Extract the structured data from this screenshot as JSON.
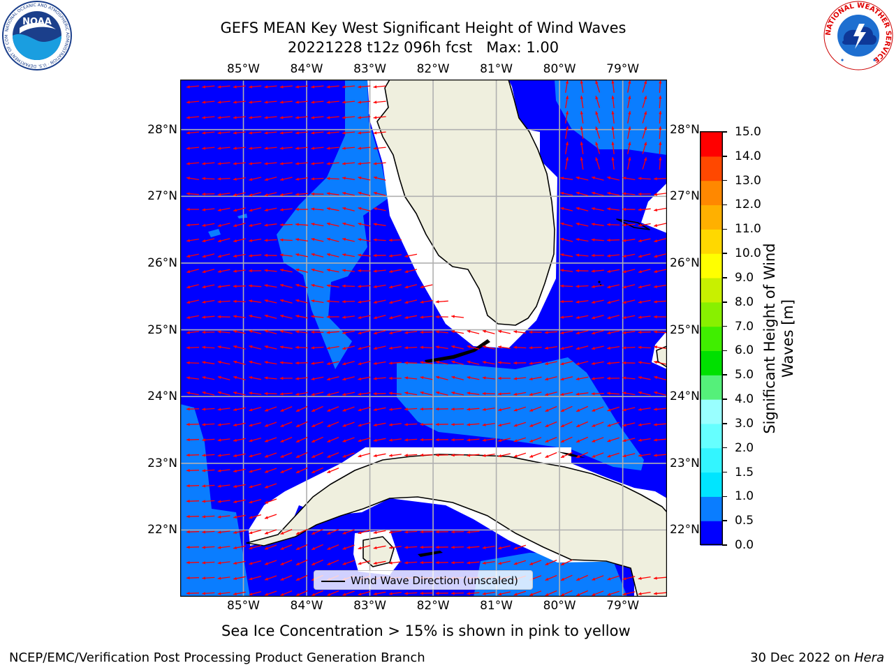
{
  "title_line1": "GEFS MEAN Key West Significant Height of Wind Waves",
  "title_line2": "20221228 t12z 096h fcst   Max: 1.00",
  "map": {
    "lon_range": [
      -86,
      -78.3
    ],
    "lat_range": [
      21.0,
      28.75
    ],
    "lon_ticks": [
      "85°W",
      "84°W",
      "83°W",
      "82°W",
      "81°W",
      "80°W",
      "79°W"
    ],
    "lat_ticks": [
      "22°N",
      "23°N",
      "24°N",
      "25°N",
      "26°N",
      "27°N",
      "28°N"
    ],
    "gridlines": true,
    "colors": {
      "ocean_low": "#0000ff",
      "ocean_mid": "#0a7dff",
      "land": "#efefde",
      "coast": "#000000",
      "arrow": "#ff0000",
      "grid": "#b0b0b0"
    }
  },
  "legend": {
    "label": "Wind Wave Direction (unscaled)",
    "placement": "bottom-center"
  },
  "colorbar": {
    "title": "Significant Height of Wind Waves [m]",
    "title_line1": "Significant Height of Wind",
    "title_line2": "Waves [m]",
    "levels": [
      "0.0",
      "0.5",
      "1.0",
      "1.5",
      "2.0",
      "3.0",
      "4.0",
      "5.0",
      "6.0",
      "7.0",
      "8.0",
      "9.0",
      "10.0",
      "11.0",
      "12.0",
      "13.0",
      "14.0",
      "15.0"
    ],
    "colors": [
      "#0000ff",
      "#0a7dff",
      "#00e5ff",
      "#33f5ff",
      "#66ffff",
      "#99ffff",
      "#55f07a",
      "#00e000",
      "#40ee00",
      "#88f000",
      "#c8f000",
      "#ffff00",
      "#ffd800",
      "#ffb000",
      "#ff8800",
      "#ff4800",
      "#ff0000"
    ]
  },
  "caption": "Sea Ice Concentration > 15% is shown in pink to yellow",
  "footer": {
    "left": "NCEP/EMC/Verification Post Processing Product Generation Branch",
    "date": "30 Dec 2022 on ",
    "machine": "Hera"
  },
  "logos": {
    "noaa_icon": "noaa-logo-icon",
    "noaa_text": "NOAA",
    "noaa_ring": "NATIONAL OCEANIC AND ATMOSPHERIC ADMINISTRATION · U.S. DEPARTMENT OF COMMERCE",
    "nws_icon": "nws-logo-icon",
    "nws_ring": "NATIONAL WEATHER SERVICE"
  }
}
